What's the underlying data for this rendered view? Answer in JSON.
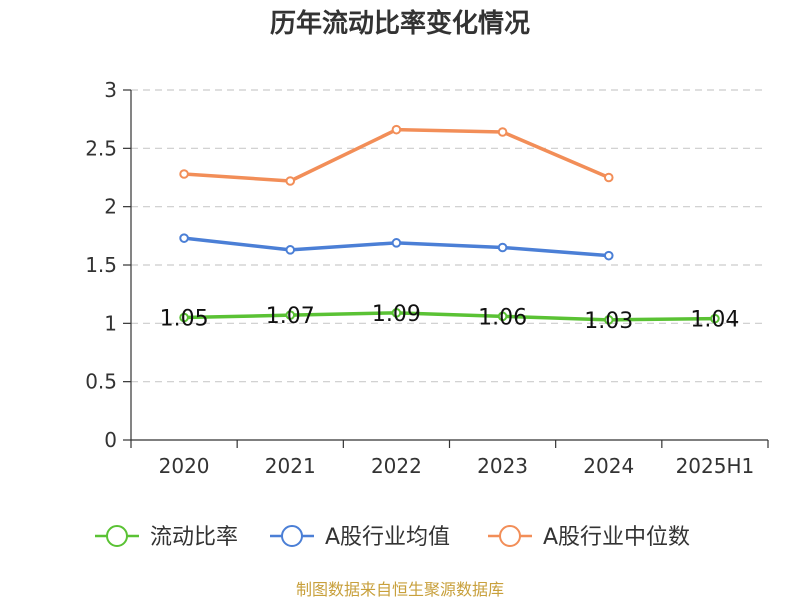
{
  "chart_data": {
    "type": "line",
    "title": "历年流动比率变化情况",
    "categories": [
      "2020",
      "2021",
      "2022",
      "2023",
      "2024",
      "2025H1"
    ],
    "ylim": [
      0,
      3
    ],
    "yticks": [
      "0",
      "0.5",
      "1",
      "1.5",
      "2",
      "2.5",
      "3"
    ],
    "grid": true,
    "legend_position": "bottom",
    "series": [
      {
        "name": "流动比率",
        "color": "#5ac234",
        "values": [
          1.05,
          1.07,
          1.09,
          1.06,
          1.03,
          1.04
        ],
        "labels": [
          "1.05",
          "1.07",
          "1.09",
          "1.06",
          "1.03",
          "1.04"
        ]
      },
      {
        "name": "A股行业均值",
        "color": "#4b7fd6",
        "values": [
          1.73,
          1.63,
          1.69,
          1.65,
          1.58,
          null
        ]
      },
      {
        "name": "A股行业中位数",
        "color": "#f28e58",
        "values": [
          2.28,
          2.22,
          2.66,
          2.64,
          2.25,
          null
        ]
      }
    ]
  },
  "source": "制图数据来自恒生聚源数据库"
}
